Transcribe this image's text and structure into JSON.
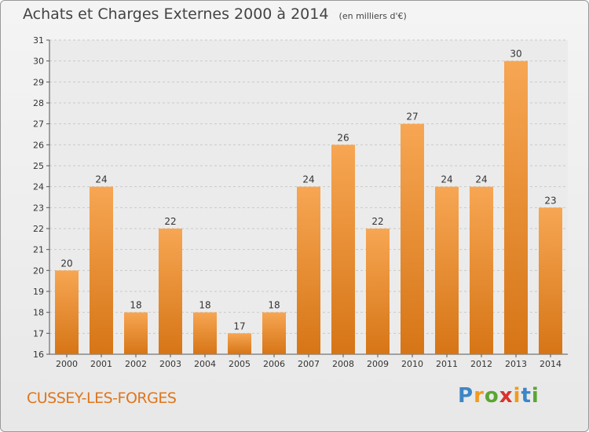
{
  "title": "Achats et Charges Externes 2000 à 2014",
  "subtitle": "(en milliers d'€)",
  "town": "CUSSEY-LES-FORGES",
  "brand": {
    "letters": [
      "P",
      "r",
      "o",
      "x",
      "i",
      "t",
      "i"
    ],
    "colors": [
      "#3d86c6",
      "#f29a1f",
      "#5aa532",
      "#d9322c",
      "#f29a1f",
      "#3d86c6",
      "#5aa532"
    ]
  },
  "colors": {
    "bar_top": "#f7a653",
    "bar_bottom": "#d67516",
    "town": "#e0751b"
  },
  "chart_data": {
    "type": "bar",
    "categories": [
      "2000",
      "2001",
      "2002",
      "2003",
      "2004",
      "2005",
      "2006",
      "2007",
      "2008",
      "2009",
      "2010",
      "2011",
      "2012",
      "2013",
      "2014"
    ],
    "values": [
      20,
      24,
      18,
      22,
      18,
      17,
      18,
      24,
      26,
      22,
      27,
      24,
      24,
      30,
      23
    ],
    "ylim": [
      16,
      31
    ],
    "yticks": [
      16,
      17,
      18,
      19,
      20,
      21,
      22,
      23,
      24,
      25,
      26,
      27,
      28,
      29,
      30,
      31
    ],
    "grid": true
  }
}
